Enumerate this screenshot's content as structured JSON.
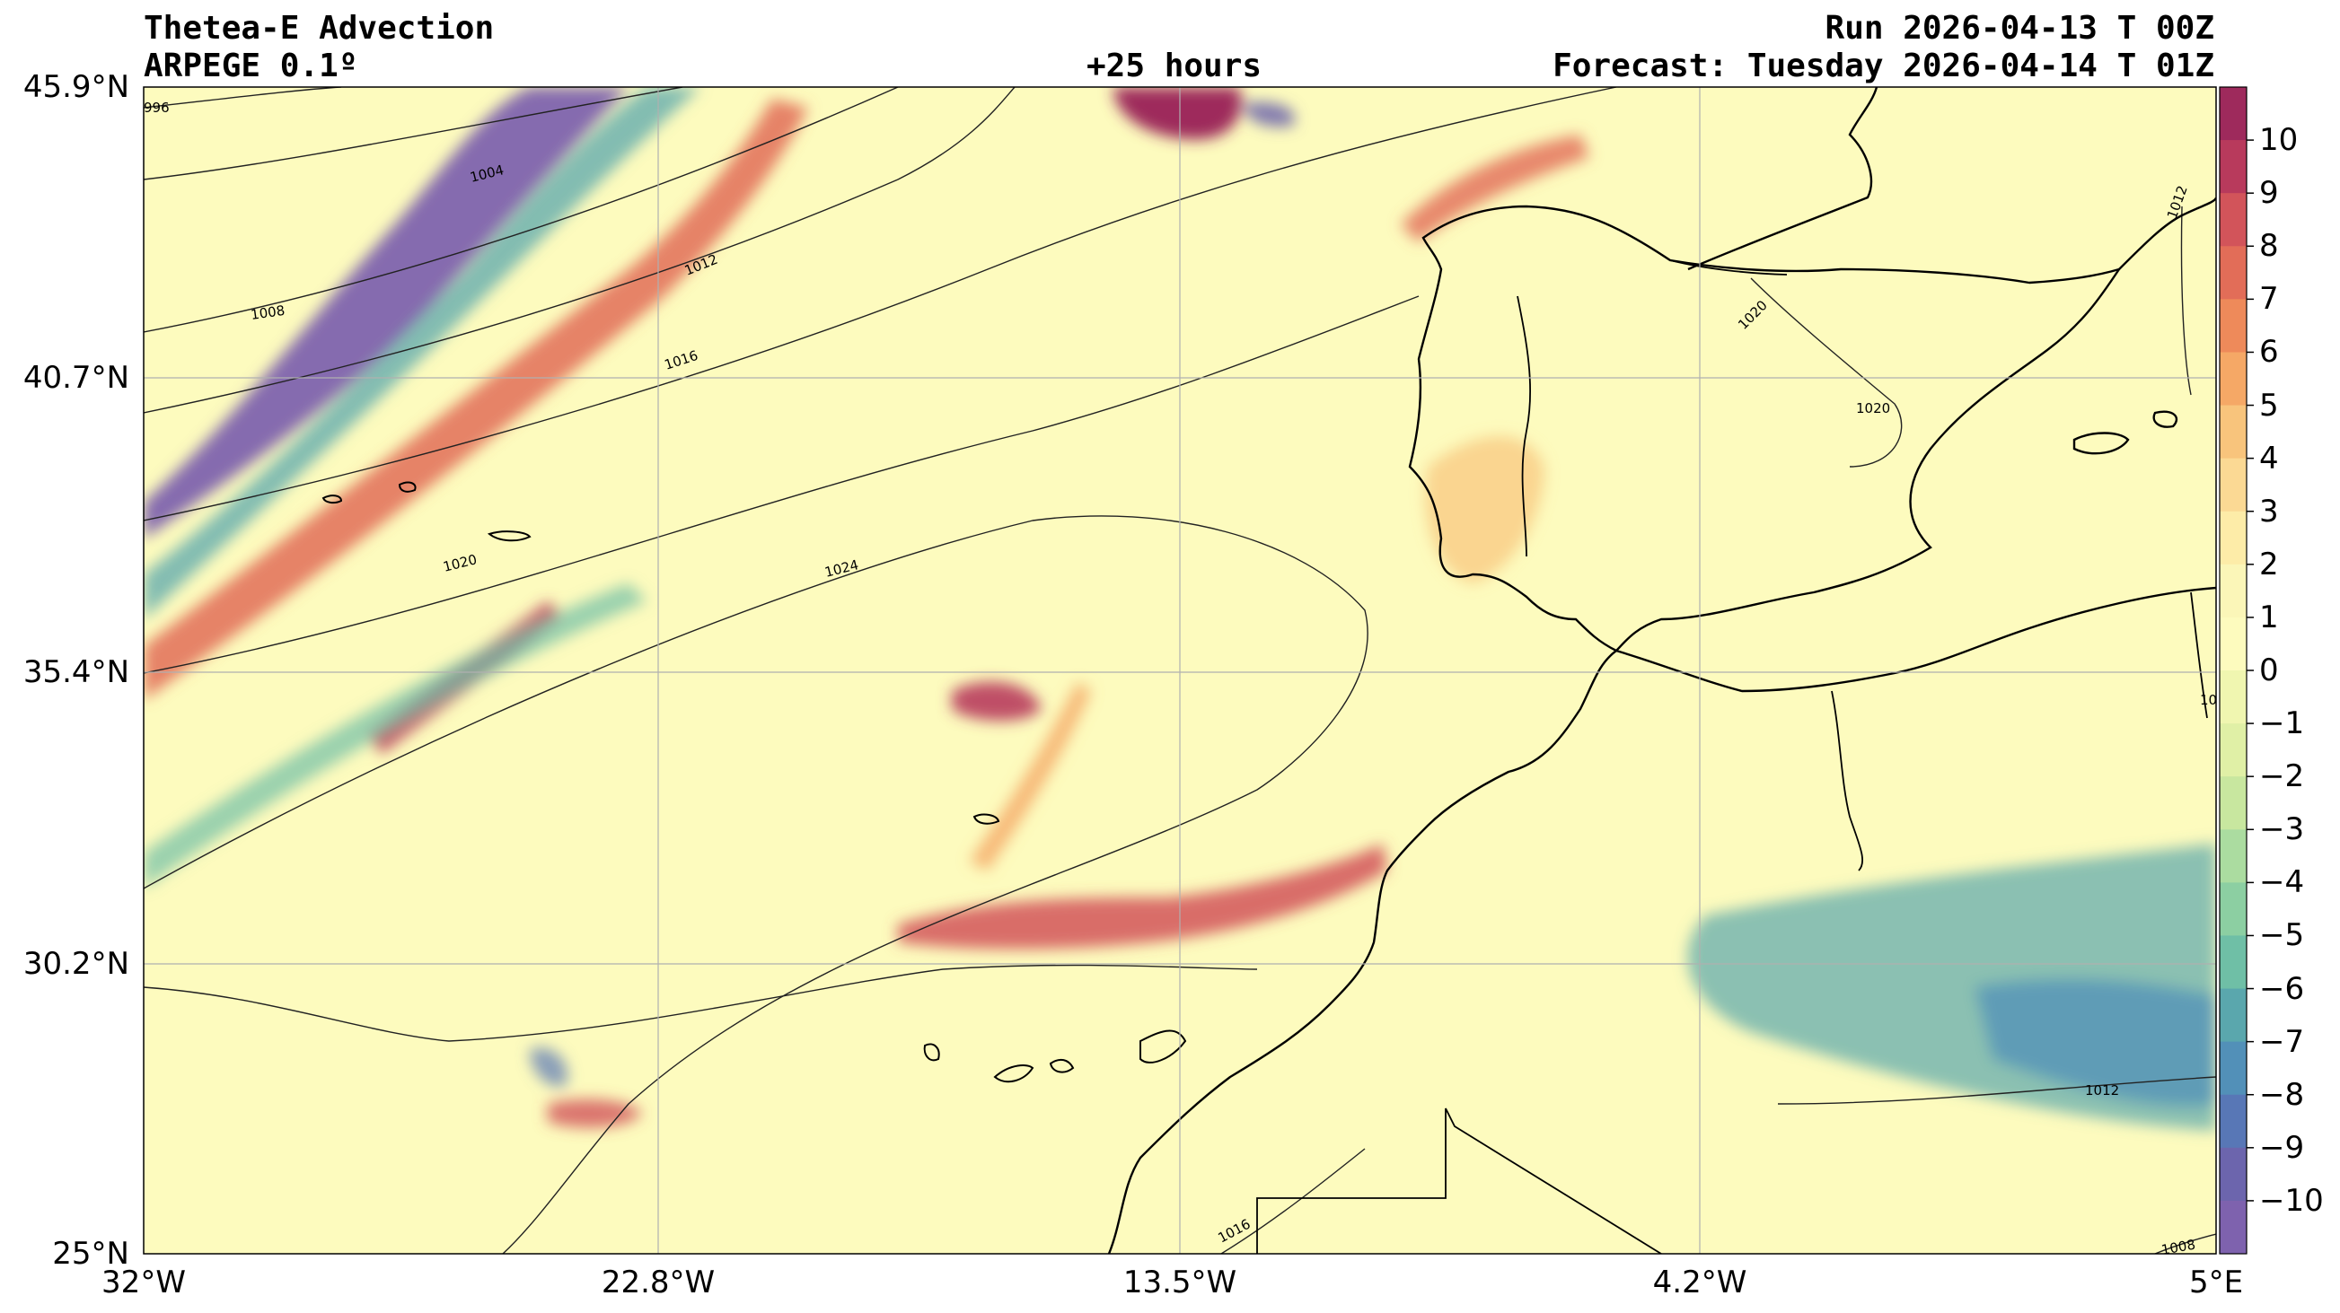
{
  "header": {
    "title": "Thetea-E Advection",
    "model": "ARPEGE 0.1º",
    "lead": "+25 hours",
    "run": "Run 2026-04-13 T 00Z",
    "forecast": "Forecast: Tuesday 2026-04-14 T 01Z"
  },
  "axes": {
    "lat_labels": [
      "45.9°N",
      "40.7°N",
      "35.4°N",
      "30.2°N",
      "25°N"
    ],
    "lon_labels": [
      "32°W",
      "22.8°W",
      "13.5°W",
      "4.2°W",
      "5°E"
    ]
  },
  "colorbar": {
    "ticks": [
      "10",
      "9",
      "8",
      "7",
      "6",
      "5",
      "4",
      "3",
      "2",
      "1",
      "0",
      "−1",
      "−2",
      "−3",
      "−4",
      "−5",
      "−6",
      "−7",
      "−8",
      "−9",
      "−10"
    ],
    "colors": [
      "#9e2a5c",
      "#b83a5c",
      "#d2545a",
      "#e26d58",
      "#ee8a5a",
      "#f5a866",
      "#f8c47c",
      "#fbd994",
      "#fdeca8",
      "#fbf6b8",
      "#fdfbbe",
      "#f0f6b0",
      "#e0f0a6",
      "#c8e79f",
      "#abdca0",
      "#8ccfa2",
      "#6fbfa6",
      "#5aa7ad",
      "#5290b8",
      "#5877b6",
      "#6c65ad",
      "#7e62ae"
    ]
  },
  "isobar_labels": [
    "996",
    "1004",
    "1008",
    "1012",
    "1016",
    "1020",
    "1024",
    "1020",
    "1020",
    "1012",
    "1016",
    "1012",
    "1008",
    "10"
  ],
  "map_colors": {
    "background": "#fdfbbe",
    "grid": "#b0b0b0",
    "coast": "#000000"
  }
}
